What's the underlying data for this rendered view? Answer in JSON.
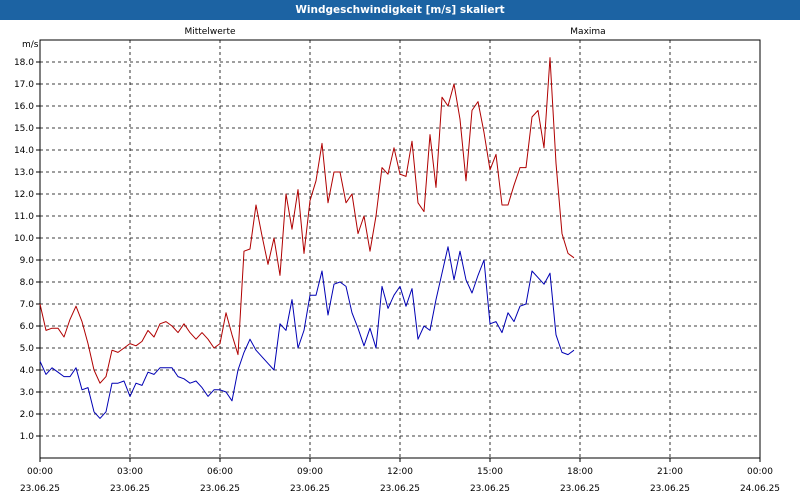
{
  "window": {
    "title": "Windgeschwindigkeit [m/s] skaliert"
  },
  "colors": {
    "titlebar": "#1c63a3",
    "mean": "#0000b4",
    "max": "#b00000",
    "grid": "#000000"
  },
  "chart_data": {
    "type": "line",
    "title": "Windgeschwindigkeit [m/s] skaliert",
    "ylabel": "m/s",
    "ylim": [
      0,
      19
    ],
    "yticks": [
      "1.0",
      "2.0",
      "3.0",
      "4.0",
      "5.0",
      "6.0",
      "7.0",
      "8.0",
      "9.0",
      "10.0",
      "11.0",
      "12.0",
      "13.0",
      "14.0",
      "15.0",
      "16.0",
      "17.0",
      "18.0"
    ],
    "xlim_hours": [
      0,
      24
    ],
    "xticks": [
      {
        "time": "00:00",
        "date": "23.06.25"
      },
      {
        "time": "03:00",
        "date": "23.06.25"
      },
      {
        "time": "06:00",
        "date": "23.06.25"
      },
      {
        "time": "09:00",
        "date": "23.06.25"
      },
      {
        "time": "12:00",
        "date": "23.06.25"
      },
      {
        "time": "15:00",
        "date": "23.06.25"
      },
      {
        "time": "18:00",
        "date": "23.06.25"
      },
      {
        "time": "21:00",
        "date": "23.06.25"
      },
      {
        "time": "00:00",
        "date": "24.06.25"
      }
    ],
    "grid": true,
    "series": [
      {
        "name": "Mittelwerte",
        "color": "#0000b4",
        "points": [
          [
            0.0,
            4.4
          ],
          [
            0.2,
            3.8
          ],
          [
            0.4,
            4.1
          ],
          [
            0.6,
            3.9
          ],
          [
            0.8,
            3.7
          ],
          [
            1.0,
            3.7
          ],
          [
            1.2,
            4.1
          ],
          [
            1.4,
            3.1
          ],
          [
            1.6,
            3.2
          ],
          [
            1.8,
            2.1
          ],
          [
            2.0,
            1.8
          ],
          [
            2.2,
            2.1
          ],
          [
            2.4,
            3.4
          ],
          [
            2.6,
            3.4
          ],
          [
            2.8,
            3.5
          ],
          [
            3.0,
            2.8
          ],
          [
            3.2,
            3.4
          ],
          [
            3.4,
            3.3
          ],
          [
            3.6,
            3.9
          ],
          [
            3.8,
            3.8
          ],
          [
            4.0,
            4.1
          ],
          [
            4.2,
            4.1
          ],
          [
            4.4,
            4.1
          ],
          [
            4.6,
            3.7
          ],
          [
            4.8,
            3.6
          ],
          [
            5.0,
            3.4
          ],
          [
            5.2,
            3.5
          ],
          [
            5.4,
            3.2
          ],
          [
            5.6,
            2.8
          ],
          [
            5.8,
            3.1
          ],
          [
            6.0,
            3.1
          ],
          [
            6.2,
            3.0
          ],
          [
            6.4,
            2.6
          ],
          [
            6.6,
            4.0
          ],
          [
            6.8,
            4.8
          ],
          [
            7.0,
            5.4
          ],
          [
            7.2,
            4.9
          ],
          [
            7.4,
            4.6
          ],
          [
            7.6,
            4.3
          ],
          [
            7.8,
            4.0
          ],
          [
            8.0,
            6.1
          ],
          [
            8.2,
            5.8
          ],
          [
            8.4,
            7.2
          ],
          [
            8.6,
            5.0
          ],
          [
            8.8,
            5.8
          ],
          [
            9.0,
            7.4
          ],
          [
            9.2,
            7.4
          ],
          [
            9.4,
            8.5
          ],
          [
            9.6,
            6.5
          ],
          [
            9.8,
            7.9
          ],
          [
            10.0,
            8.0
          ],
          [
            10.2,
            7.8
          ],
          [
            10.4,
            6.6
          ],
          [
            10.6,
            5.9
          ],
          [
            10.8,
            5.1
          ],
          [
            11.0,
            5.9
          ],
          [
            11.2,
            5.0
          ],
          [
            11.4,
            7.8
          ],
          [
            11.6,
            6.8
          ],
          [
            11.8,
            7.4
          ],
          [
            12.0,
            7.8
          ],
          [
            12.2,
            6.9
          ],
          [
            12.4,
            7.7
          ],
          [
            12.6,
            5.4
          ],
          [
            12.8,
            6.0
          ],
          [
            13.0,
            5.8
          ],
          [
            13.2,
            7.2
          ],
          [
            13.4,
            8.4
          ],
          [
            13.6,
            9.6
          ],
          [
            13.8,
            8.1
          ],
          [
            14.0,
            9.4
          ],
          [
            14.2,
            8.1
          ],
          [
            14.4,
            7.5
          ],
          [
            14.6,
            8.3
          ],
          [
            14.8,
            9.0
          ],
          [
            15.0,
            6.1
          ],
          [
            15.2,
            6.2
          ],
          [
            15.4,
            5.7
          ],
          [
            15.6,
            6.6
          ],
          [
            15.8,
            6.2
          ],
          [
            16.0,
            6.9
          ],
          [
            16.2,
            7.0
          ],
          [
            16.4,
            8.5
          ],
          [
            16.6,
            8.2
          ],
          [
            16.8,
            7.9
          ],
          [
            17.0,
            8.4
          ],
          [
            17.2,
            5.6
          ],
          [
            17.4,
            4.8
          ],
          [
            17.6,
            4.7
          ],
          [
            17.8,
            4.9
          ]
        ]
      },
      {
        "name": "Maxima",
        "color": "#b00000",
        "points": [
          [
            0.0,
            7.0
          ],
          [
            0.2,
            5.8
          ],
          [
            0.4,
            5.9
          ],
          [
            0.6,
            5.9
          ],
          [
            0.8,
            5.5
          ],
          [
            1.0,
            6.3
          ],
          [
            1.2,
            6.9
          ],
          [
            1.4,
            6.2
          ],
          [
            1.6,
            5.2
          ],
          [
            1.8,
            4.0
          ],
          [
            2.0,
            3.4
          ],
          [
            2.2,
            3.7
          ],
          [
            2.4,
            4.9
          ],
          [
            2.6,
            4.8
          ],
          [
            2.8,
            5.0
          ],
          [
            3.0,
            5.2
          ],
          [
            3.2,
            5.1
          ],
          [
            3.4,
            5.3
          ],
          [
            3.6,
            5.8
          ],
          [
            3.8,
            5.5
          ],
          [
            4.0,
            6.1
          ],
          [
            4.2,
            6.2
          ],
          [
            4.4,
            6.0
          ],
          [
            4.6,
            5.7
          ],
          [
            4.8,
            6.1
          ],
          [
            5.0,
            5.7
          ],
          [
            5.2,
            5.4
          ],
          [
            5.4,
            5.7
          ],
          [
            5.6,
            5.4
          ],
          [
            5.8,
            5.0
          ],
          [
            6.0,
            5.2
          ],
          [
            6.2,
            6.6
          ],
          [
            6.4,
            5.6
          ],
          [
            6.6,
            4.7
          ],
          [
            6.8,
            9.4
          ],
          [
            7.0,
            9.5
          ],
          [
            7.2,
            11.5
          ],
          [
            7.4,
            10.1
          ],
          [
            7.6,
            8.8
          ],
          [
            7.8,
            10.0
          ],
          [
            8.0,
            8.3
          ],
          [
            8.2,
            12.0
          ],
          [
            8.4,
            10.4
          ],
          [
            8.6,
            12.2
          ],
          [
            8.8,
            9.3
          ],
          [
            9.0,
            11.7
          ],
          [
            9.2,
            12.6
          ],
          [
            9.4,
            14.3
          ],
          [
            9.6,
            11.6
          ],
          [
            9.8,
            13.0
          ],
          [
            10.0,
            13.0
          ],
          [
            10.2,
            11.6
          ],
          [
            10.4,
            12.0
          ],
          [
            10.6,
            10.2
          ],
          [
            10.8,
            11.0
          ],
          [
            11.0,
            9.4
          ],
          [
            11.2,
            11.0
          ],
          [
            11.4,
            13.2
          ],
          [
            11.6,
            12.9
          ],
          [
            11.8,
            14.1
          ],
          [
            12.0,
            12.9
          ],
          [
            12.2,
            12.8
          ],
          [
            12.4,
            14.4
          ],
          [
            12.6,
            11.6
          ],
          [
            12.8,
            11.2
          ],
          [
            13.0,
            14.7
          ],
          [
            13.2,
            12.3
          ],
          [
            13.4,
            16.4
          ],
          [
            13.6,
            16.0
          ],
          [
            13.8,
            17.0
          ],
          [
            14.0,
            15.4
          ],
          [
            14.2,
            12.6
          ],
          [
            14.4,
            15.8
          ],
          [
            14.6,
            16.2
          ],
          [
            14.8,
            14.8
          ],
          [
            15.0,
            13.1
          ],
          [
            15.2,
            13.8
          ],
          [
            15.4,
            11.5
          ],
          [
            15.6,
            11.5
          ],
          [
            15.8,
            12.4
          ],
          [
            16.0,
            13.2
          ],
          [
            16.2,
            13.2
          ],
          [
            16.4,
            15.5
          ],
          [
            16.6,
            15.8
          ],
          [
            16.8,
            14.1
          ],
          [
            17.0,
            18.2
          ],
          [
            17.2,
            13.4
          ],
          [
            17.4,
            10.2
          ],
          [
            17.6,
            9.3
          ],
          [
            17.8,
            9.1
          ]
        ]
      }
    ]
  }
}
